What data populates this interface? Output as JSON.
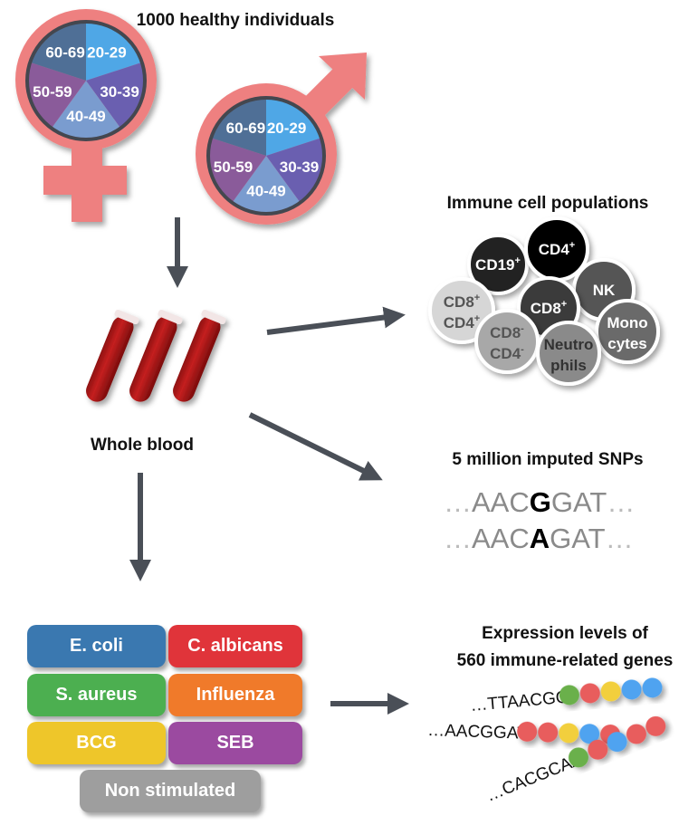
{
  "title": "1000 healthy individuals",
  "age_groups": [
    "20-29",
    "30-39",
    "40-49",
    "50-59",
    "60-69"
  ],
  "age_colors": [
    "#4fa7e6",
    "#6a5fb0",
    "#7a9ccf",
    "#8a5b9a",
    "#4f6f96"
  ],
  "symbol_color": "#ee8080",
  "blood_label": "Whole blood",
  "immune": {
    "title": "Immune cell populations",
    "cells": [
      {
        "line1": "CD19",
        "sup1": "+",
        "line2": "",
        "sup2": "",
        "fill": "#222222",
        "text": "#ffffff"
      },
      {
        "line1": "CD4",
        "sup1": "+",
        "line2": "",
        "sup2": "",
        "fill": "#000000",
        "text": "#ffffff"
      },
      {
        "line1": "NK",
        "sup1": "",
        "line2": "",
        "sup2": "",
        "fill": "#555555",
        "text": "#ffffff"
      },
      {
        "line1": "CD8",
        "sup1": "+",
        "line2": "",
        "sup2": "",
        "fill": "#3a3a3a",
        "text": "#ffffff"
      },
      {
        "line1": "CD8",
        "sup1": "+",
        "line2": "CD4",
        "sup2": "+",
        "fill": "#d6d6d6",
        "text": "#555555"
      },
      {
        "line1": "Mono",
        "sup1": "",
        "line2": "cytes",
        "sup2": "",
        "fill": "#6a6a6a",
        "text": "#ffffff"
      },
      {
        "line1": "CD8",
        "sup1": "-",
        "line2": "CD4",
        "sup2": "-",
        "fill": "#a8a8a8",
        "text": "#555555"
      },
      {
        "line1": "Neutro",
        "sup1": "",
        "line2": "phils",
        "sup2": "",
        "fill": "#8a8a8a",
        "text": "#333333"
      }
    ]
  },
  "snps": {
    "title": "5 million imputed SNPs",
    "lines": [
      {
        "pre": "…",
        "left": "AAC",
        "allele": "G",
        "right": "GAT",
        "post": "…"
      },
      {
        "pre": "…",
        "left": "AAC",
        "allele": "A",
        "right": "GAT",
        "post": "…"
      }
    ]
  },
  "stimuli": [
    {
      "label": "E. coli",
      "color": "#3a78b0"
    },
    {
      "label": "C. albicans",
      "color": "#e0343a"
    },
    {
      "label": "S. aureus",
      "color": "#4caf50"
    },
    {
      "label": "Influenza",
      "color": "#f07a2a"
    },
    {
      "label": "BCG",
      "color": "#eec62a"
    },
    {
      "label": "SEB",
      "color": "#9b4aa0"
    },
    {
      "label": "Non stimulated",
      "color": "#9e9e9e"
    }
  ],
  "expression": {
    "title_line1": "Expression levels of",
    "title_line2": "560 immune-related genes",
    "sequences": [
      {
        "text": "…TTAACGG",
        "beads": [
          "#6ab04c",
          "#e85d5d",
          "#f2cf3c",
          "#4fa3f0",
          "#4fa3f0"
        ]
      },
      {
        "text": "…AACGGAT",
        "beads": [
          "#e85d5d",
          "#e85d5d",
          "#f2cf3c",
          "#4fa3f0",
          "#e85d5d"
        ]
      },
      {
        "text": "…CACGCAA",
        "beads": [
          "#6ab04c",
          "#e85d5d",
          "#4fa3f0",
          "#e85d5d",
          "#e85d5d"
        ]
      }
    ]
  }
}
